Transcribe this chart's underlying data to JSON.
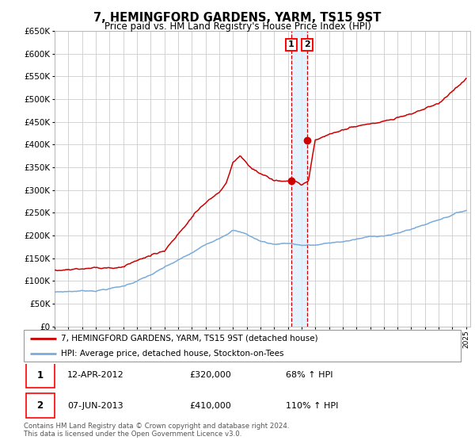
{
  "title": "7, HEMINGFORD GARDENS, YARM, TS15 9ST",
  "subtitle": "Price paid vs. HM Land Registry's House Price Index (HPI)",
  "legend_entry1": "7, HEMINGFORD GARDENS, YARM, TS15 9ST (detached house)",
  "legend_entry2": "HPI: Average price, detached house, Stockton-on-Tees",
  "transaction1_date": "12-APR-2012",
  "transaction1_price": 320000,
  "transaction1_hpi": "68% ↑ HPI",
  "transaction2_date": "07-JUN-2013",
  "transaction2_price": 410000,
  "transaction2_hpi": "110% ↑ HPI",
  "footnote1": "Contains HM Land Registry data © Crown copyright and database right 2024.",
  "footnote2": "This data is licensed under the Open Government Licence v3.0.",
  "hpi_color": "#7aabdb",
  "price_color": "#cc0000",
  "bg_color": "#ffffff",
  "grid_color": "#cccccc",
  "vline_color": "#cc0000",
  "vband_color": "#ddeeff",
  "ylim_max": 650000,
  "ylim_min": 0,
  "year_start": 1995,
  "year_end": 2025
}
